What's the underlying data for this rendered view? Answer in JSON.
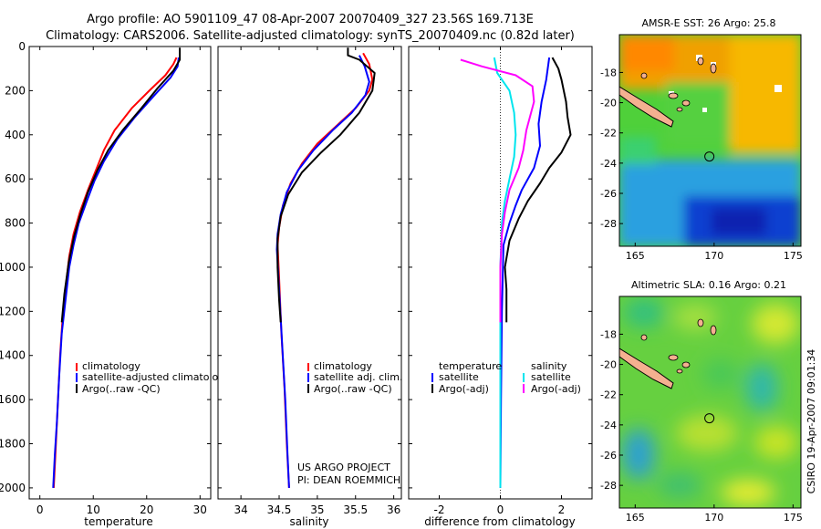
{
  "header": {
    "line1": "Argo profile: AO 5901109_47 08-Apr-2007 20070409_327 23.56S 169.713E",
    "line2": "Climatology: CARS2006. Satellite-adjusted climatology: synTS_20070409.nc (0.82d later)"
  },
  "credits": {
    "project": "US ARGO PROJECT",
    "pi": "PI: DEAN ROEMMICH",
    "stamp": "CSIRO 19-Apr-2007 09:01:34"
  },
  "colors": {
    "climatology": "#ff0000",
    "satellite": "#0000ff",
    "argo": "#000000",
    "sat_diff": "#00e5ee",
    "argo_sal_diff": "#ff00ff"
  },
  "chart_data": [
    {
      "type": "line",
      "xlabel": "temperature",
      "ylabel": "",
      "xlim": [
        -2,
        32
      ],
      "ylim": [
        2050,
        0
      ],
      "xticks": [
        "0",
        "10",
        "20",
        "30"
      ],
      "yticks": [
        "0",
        "200",
        "400",
        "600",
        "800",
        "1000",
        "1200",
        "1400",
        "1600",
        "1800",
        "2000"
      ],
      "legend": [
        "climatology",
        "satellite-adjusted climatology",
        "Argo(..raw -QC)"
      ],
      "series": [
        {
          "name": "climatology",
          "color": "#ff0000",
          "points": [
            [
              25.6,
              50
            ],
            [
              25.0,
              80
            ],
            [
              23.5,
              130
            ],
            [
              20.5,
              200
            ],
            [
              17.2,
              280
            ],
            [
              14.0,
              380
            ],
            [
              12.0,
              470
            ],
            [
              10.5,
              560
            ],
            [
              9.0,
              650
            ],
            [
              7.5,
              750
            ],
            [
              6.3,
              850
            ],
            [
              5.5,
              950
            ],
            [
              4.8,
              1100
            ],
            [
              4.2,
              1250
            ],
            [
              3.8,
              1400
            ],
            [
              3.4,
              1600
            ],
            [
              3.0,
              1800
            ],
            [
              2.6,
              2000
            ]
          ]
        },
        {
          "name": "satellite-adjusted climatology",
          "color": "#0000ff",
          "points": [
            [
              26.0,
              50
            ],
            [
              25.8,
              90
            ],
            [
              24.5,
              140
            ],
            [
              21.5,
              220
            ],
            [
              17.8,
              320
            ],
            [
              14.5,
              420
            ],
            [
              12.0,
              520
            ],
            [
              10.2,
              610
            ],
            [
              8.8,
              700
            ],
            [
              7.3,
              800
            ],
            [
              6.3,
              900
            ],
            [
              5.5,
              1000
            ],
            [
              4.8,
              1150
            ],
            [
              4.1,
              1300
            ],
            [
              3.6,
              1500
            ],
            [
              3.2,
              1700
            ],
            [
              2.8,
              1850
            ],
            [
              2.5,
              2000
            ]
          ]
        },
        {
          "name": "Argo(..raw -QC)",
          "color": "#000000",
          "points": [
            [
              26.2,
              5
            ],
            [
              26.2,
              60
            ],
            [
              25.0,
              110
            ],
            [
              22.0,
              190
            ],
            [
              19.0,
              280
            ],
            [
              15.5,
              380
            ],
            [
              12.8,
              470
            ],
            [
              10.8,
              560
            ],
            [
              9.0,
              660
            ],
            [
              7.6,
              760
            ],
            [
              6.4,
              860
            ],
            [
              5.4,
              980
            ],
            [
              4.6,
              1120
            ],
            [
              4.1,
              1250
            ]
          ]
        }
      ]
    },
    {
      "type": "line",
      "xlabel": "salinity",
      "ylabel": "",
      "xlim": [
        33.7,
        36.1
      ],
      "ylim": [
        2050,
        0
      ],
      "xticks": [
        "34",
        "34.5",
        "35",
        "35.5",
        "36"
      ],
      "legend": [
        "climatology",
        "satellite adj. clim.",
        "Argo(..raw -QC)"
      ],
      "series": [
        {
          "name": "climatology",
          "color": "#ff0000",
          "points": [
            [
              35.6,
              30
            ],
            [
              35.68,
              80
            ],
            [
              35.72,
              150
            ],
            [
              35.68,
              200
            ],
            [
              35.5,
              280
            ],
            [
              35.25,
              360
            ],
            [
              35.0,
              440
            ],
            [
              34.8,
              530
            ],
            [
              34.65,
              620
            ],
            [
              34.55,
              720
            ],
            [
              34.5,
              820
            ],
            [
              34.48,
              900
            ],
            [
              34.5,
              1050
            ],
            [
              34.53,
              1300
            ],
            [
              34.57,
              1550
            ],
            [
              34.6,
              1800
            ],
            [
              34.63,
              2000
            ]
          ]
        },
        {
          "name": "satellite adj. clim.",
          "color": "#0000ff",
          "points": [
            [
              35.55,
              40
            ],
            [
              35.62,
              90
            ],
            [
              35.68,
              160
            ],
            [
              35.63,
              220
            ],
            [
              35.45,
              300
            ],
            [
              35.2,
              380
            ],
            [
              34.95,
              470
            ],
            [
              34.75,
              560
            ],
            [
              34.6,
              660
            ],
            [
              34.52,
              760
            ],
            [
              34.48,
              850
            ],
            [
              34.47,
              920
            ],
            [
              34.5,
              1100
            ],
            [
              34.54,
              1350
            ],
            [
              34.58,
              1600
            ],
            [
              34.61,
              1850
            ],
            [
              34.63,
              2000
            ]
          ]
        },
        {
          "name": "Argo(..raw -QC)",
          "color": "#000000",
          "points": [
            [
              35.4,
              5
            ],
            [
              35.4,
              40
            ],
            [
              35.55,
              60
            ],
            [
              35.75,
              120
            ],
            [
              35.72,
              200
            ],
            [
              35.55,
              300
            ],
            [
              35.3,
              400
            ],
            [
              35.05,
              480
            ],
            [
              34.8,
              570
            ],
            [
              34.62,
              670
            ],
            [
              34.52,
              770
            ],
            [
              34.48,
              870
            ],
            [
              34.48,
              1000
            ],
            [
              34.5,
              1150
            ],
            [
              34.52,
              1250
            ]
          ]
        }
      ]
    },
    {
      "type": "line",
      "xlabel": "difference from climatology",
      "ylabel": "",
      "xlim": [
        -3,
        3
      ],
      "ylim": [
        2050,
        0
      ],
      "xticks": [
        "-2",
        "0",
        "2"
      ],
      "legend_left_title": "temperature",
      "legend_right_title": "salinity",
      "legend": [
        "satellite",
        "Argo(-adj)",
        "satellite",
        "Argo(-adj)"
      ],
      "series": [
        {
          "name": "satellite",
          "color": "#0000ff",
          "points": [
            [
              1.6,
              50
            ],
            [
              1.5,
              150
            ],
            [
              1.35,
              250
            ],
            [
              1.25,
              350
            ],
            [
              1.3,
              450
            ],
            [
              1.1,
              550
            ],
            [
              0.7,
              650
            ],
            [
              0.5,
              720
            ],
            [
              0.3,
              800
            ],
            [
              0.1,
              900
            ],
            [
              0.05,
              1200
            ],
            [
              0.02,
              1600
            ],
            [
              0.0,
              2000
            ]
          ]
        },
        {
          "name": "Argo(-adj)",
          "color": "#000000",
          "points": [
            [
              1.7,
              50
            ],
            [
              1.9,
              100
            ],
            [
              2.0,
              150
            ],
            [
              2.15,
              250
            ],
            [
              2.2,
              320
            ],
            [
              2.3,
              400
            ],
            [
              2.0,
              480
            ],
            [
              1.6,
              550
            ],
            [
              1.3,
              620
            ],
            [
              0.9,
              700
            ],
            [
              0.6,
              780
            ],
            [
              0.3,
              880
            ],
            [
              0.15,
              1000
            ],
            [
              0.2,
              1100
            ],
            [
              0.2,
              1250
            ]
          ]
        },
        {
          "name": "satellite",
          "color": "#00e5ee",
          "points": [
            [
              -0.2,
              50
            ],
            [
              -0.1,
              120
            ],
            [
              0.3,
              200
            ],
            [
              0.45,
              300
            ],
            [
              0.5,
              400
            ],
            [
              0.45,
              500
            ],
            [
              0.3,
              600
            ],
            [
              0.15,
              700
            ],
            [
              0.05,
              800
            ],
            [
              0.0,
              1000
            ],
            [
              0.0,
              1400
            ],
            [
              0.0,
              2000
            ]
          ]
        },
        {
          "name": "Argo(-adj)",
          "color": "#ff00ff",
          "points": [
            [
              -1.3,
              60
            ],
            [
              -0.6,
              90
            ],
            [
              0.5,
              130
            ],
            [
              1.05,
              180
            ],
            [
              1.1,
              250
            ],
            [
              0.85,
              380
            ],
            [
              0.75,
              470
            ],
            [
              0.6,
              550
            ],
            [
              0.3,
              650
            ],
            [
              0.15,
              750
            ],
            [
              0.05,
              850
            ],
            [
              0.0,
              1000
            ],
            [
              0.0,
              1250
            ]
          ]
        }
      ]
    },
    {
      "type": "heatmap",
      "title": "AMSR-E SST: 26 Argo: 25.8",
      "xlim": [
        164,
        175.5
      ],
      "ylim": [
        -29.5,
        -15.5
      ],
      "xticks": [
        "165",
        "170",
        "175"
      ],
      "yticks": [
        "-18",
        "-20",
        "-22",
        "-24",
        "-26",
        "-28"
      ],
      "marker": [
        169.7,
        -23.56
      ]
    },
    {
      "type": "heatmap",
      "title": "Altimetric SLA: 0.16 Argo: 0.21",
      "xlim": [
        164,
        175.5
      ],
      "ylim": [
        -29.5,
        -15.5
      ],
      "xticks": [
        "165",
        "170",
        "175"
      ],
      "yticks": [
        "-18",
        "-20",
        "-22",
        "-24",
        "-26",
        "-28"
      ],
      "marker": [
        169.7,
        -23.56
      ]
    }
  ]
}
